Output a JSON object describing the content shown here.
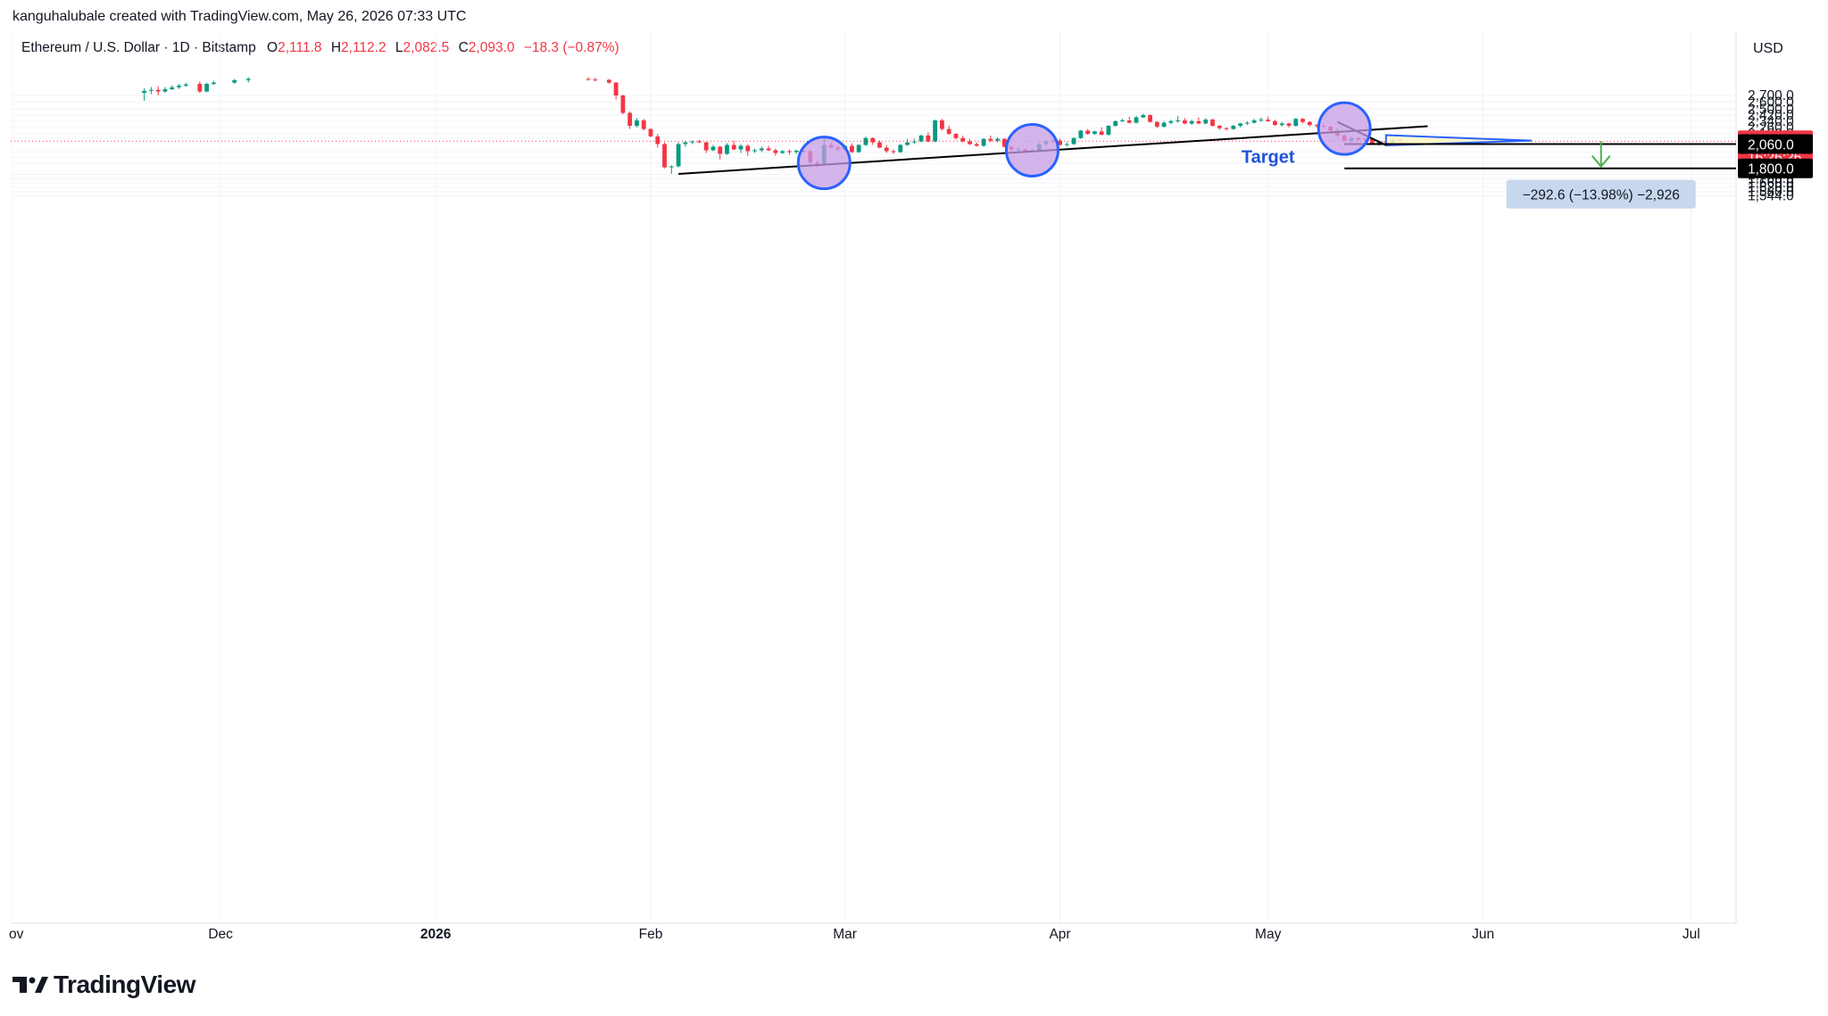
{
  "attribution": "kanguhalubale created with TradingView.com, May 26, 2026 07:33 UTC",
  "legend": {
    "symbol": "Ethereum / U.S. Dollar · 1D · Bitstamp",
    "o_label": "O",
    "o_value": "2,111.8",
    "h_label": "H",
    "h_value": "2,112.2",
    "l_label": "L",
    "l_value": "2,082.5",
    "c_label": "C",
    "c_value": "2,093.0",
    "change": "−18.3 (−0.87%)"
  },
  "currency": "USD",
  "brand": "TradingView",
  "colors": {
    "up": "#089981",
    "down": "#f23645",
    "trendline": "#000000",
    "pattern": "#2962ff",
    "pattern_fill": "#fff8c5",
    "circle_fill": "#c79be6",
    "measure": "#4caf50",
    "target_text": "#1e53d6"
  },
  "chart_data": {
    "type": "candlestick",
    "y_axis": {
      "scale": "log",
      "ticks": [
        "2,700.0",
        "2,600.0",
        "2,500.0",
        "2,420.0",
        "2,340.0",
        "2,260.0",
        "2,180.0",
        "2,130.0",
        "2,093.0",
        "2,060.0",
        "1,970.0",
        "1,910.0",
        "1,850.0",
        "1,800.0",
        "1,740.0",
        "1,700.0",
        "1,660.0",
        "1,620.0",
        "1,580.0",
        "1,544.0"
      ],
      "tick_values": [
        2700,
        2600,
        2500,
        2420,
        2340,
        2260,
        2180,
        2130,
        2093,
        2060,
        1970,
        1910,
        1850,
        1800,
        1740,
        1700,
        1660,
        1620,
        1580,
        1544
      ]
    },
    "x_axis": {
      "labels": [
        "ov",
        "Dec",
        "2026",
        "Feb",
        "Mar",
        "Apr",
        "May",
        "Jun",
        "Jul"
      ],
      "label_dates": [
        "2025-11-01",
        "2025-12-01",
        "2026-01-01",
        "2026-02-01",
        "2026-03-01",
        "2026-04-01",
        "2026-05-01",
        "2026-06-01",
        "2026-07-01"
      ]
    },
    "price_tags": [
      {
        "value": 2093.0,
        "label": "2,093.0",
        "timer": "16:26:26",
        "kind": "last"
      },
      {
        "value": 2060.0,
        "label": "2,060.0",
        "kind": "level"
      },
      {
        "value": 1800.0,
        "label": "1,800.0",
        "kind": "level"
      }
    ],
    "annotations": {
      "target_label": "Target",
      "measure_label": "−292.6 (−13.98%) −2,926",
      "ascending_trendline": {
        "from": [
          "2026-02-05",
          1745
        ],
        "to": [
          "2026-05-24",
          2275
        ]
      },
      "breakdown_line": {
        "from": [
          "2026-05-11",
          2330
        ],
        "to": [
          "2026-05-18",
          2048
        ]
      },
      "triangle": {
        "top": [
          "2026-05-18",
          2165
        ],
        "bottom": [
          "2026-05-18",
          2045
        ],
        "apex": [
          "2026-06-08",
          2100
        ]
      },
      "horizontal_levels": [
        2060,
        1800
      ],
      "circles": [
        {
          "date": "2026-02-26",
          "price": 1855
        },
        {
          "date": "2026-03-28",
          "price": 1990
        },
        {
          "date": "2026-05-12",
          "price": 2245
        }
      ],
      "measure": {
        "date": "2026-06-18",
        "from": 2093,
        "to": 1800
      }
    },
    "ohlc": [
      [
        "2025-11-20",
        2740,
        2810,
        2620,
        2770
      ],
      [
        "2025-11-21",
        2770,
        2830,
        2720,
        2785
      ],
      [
        "2025-11-22",
        2785,
        2840,
        2700,
        2760
      ],
      [
        "2025-11-23",
        2760,
        2830,
        2740,
        2795
      ],
      [
        "2025-11-24",
        2795,
        2860,
        2780,
        2825
      ],
      [
        "2025-11-25",
        2825,
        2880,
        2800,
        2850
      ],
      [
        "2025-11-26",
        2850,
        2900,
        2830,
        2870
      ],
      [
        "2025-11-28",
        2880,
        2920,
        2740,
        2760
      ],
      [
        "2025-11-29",
        2760,
        2900,
        2750,
        2880
      ],
      [
        "2025-11-30",
        2880,
        2930,
        2860,
        2900
      ],
      [
        "2025-12-03",
        2900,
        2960,
        2880,
        2940
      ],
      [
        "2025-12-05",
        2940,
        2990,
        2900,
        2960
      ],
      [
        "2026-01-23",
        2960,
        2990,
        2930,
        2950
      ],
      [
        "2026-01-24",
        2950,
        2980,
        2920,
        2945
      ],
      [
        "2026-01-26",
        2945,
        2960,
        2880,
        2900
      ],
      [
        "2026-01-27",
        2900,
        2910,
        2640,
        2700
      ],
      [
        "2026-01-28",
        2700,
        2710,
        2430,
        2450
      ],
      [
        "2026-01-29",
        2450,
        2470,
        2240,
        2280
      ],
      [
        "2026-01-30",
        2280,
        2380,
        2260,
        2350
      ],
      [
        "2026-01-31",
        2350,
        2370,
        2220,
        2240
      ],
      [
        "2026-02-01",
        2240,
        2250,
        2140,
        2150
      ],
      [
        "2026-02-02",
        2150,
        2180,
        2020,
        2060
      ],
      [
        "2026-02-03",
        2060,
        2080,
        1800,
        1810
      ],
      [
        "2026-02-04",
        1810,
        1830,
        1745,
        1820
      ],
      [
        "2026-02-05",
        1820,
        2080,
        1810,
        2060
      ],
      [
        "2026-02-06",
        2060,
        2095,
        2030,
        2080
      ],
      [
        "2026-02-07",
        2080,
        2100,
        2060,
        2090
      ],
      [
        "2026-02-08",
        2090,
        2110,
        2070,
        2080
      ],
      [
        "2026-02-09",
        2080,
        2090,
        1960,
        1990
      ],
      [
        "2026-02-10",
        1990,
        2050,
        1980,
        2030
      ],
      [
        "2026-02-11",
        2030,
        2040,
        1890,
        1950
      ],
      [
        "2026-02-12",
        1950,
        2070,
        1940,
        2050
      ],
      [
        "2026-02-13",
        2050,
        2100,
        1990,
        2000
      ],
      [
        "2026-02-14",
        2000,
        2060,
        1960,
        2040
      ],
      [
        "2026-02-15",
        2040,
        2060,
        1930,
        1980
      ],
      [
        "2026-02-16",
        1980,
        2010,
        1960,
        1990
      ],
      [
        "2026-02-17",
        1990,
        2030,
        1970,
        2010
      ],
      [
        "2026-02-18",
        2010,
        2040,
        1980,
        1990
      ],
      [
        "2026-02-19",
        1990,
        2010,
        1930,
        1960
      ],
      [
        "2026-02-20",
        1960,
        1995,
        1950,
        1980
      ],
      [
        "2026-02-21",
        1980,
        2000,
        1940,
        1970
      ],
      [
        "2026-02-22",
        1970,
        2000,
        1950,
        1985
      ],
      [
        "2026-02-23",
        1985,
        1995,
        1960,
        1980
      ],
      [
        "2026-02-24",
        1980,
        2000,
        1840,
        1860
      ],
      [
        "2026-02-25",
        1860,
        1880,
        1810,
        1850
      ],
      [
        "2026-02-26",
        1850,
        2130,
        1840,
        2050
      ],
      [
        "2026-02-27",
        2050,
        2080,
        2010,
        2020
      ],
      [
        "2026-02-28",
        2020,
        2040,
        1980,
        2000
      ],
      [
        "2026-03-01",
        2000,
        2050,
        1990,
        2040
      ],
      [
        "2026-03-02",
        2040,
        2070,
        1960,
        1970
      ],
      [
        "2026-03-03",
        1970,
        2060,
        1960,
        2050
      ],
      [
        "2026-03-04",
        2050,
        2150,
        2040,
        2130
      ],
      [
        "2026-03-05",
        2130,
        2140,
        2050,
        2080
      ],
      [
        "2026-03-06",
        2080,
        2100,
        2010,
        2020
      ],
      [
        "2026-03-07",
        2020,
        2050,
        1960,
        1980
      ],
      [
        "2026-03-08",
        1980,
        2000,
        1950,
        1970
      ],
      [
        "2026-03-09",
        1970,
        2060,
        1960,
        2050
      ],
      [
        "2026-03-10",
        2050,
        2120,
        2040,
        2080
      ],
      [
        "2026-03-11",
        2080,
        2120,
        2060,
        2090
      ],
      [
        "2026-03-12",
        2090,
        2170,
        2080,
        2160
      ],
      [
        "2026-03-13",
        2160,
        2200,
        2080,
        2090
      ],
      [
        "2026-03-14",
        2090,
        2360,
        2080,
        2350
      ],
      [
        "2026-03-15",
        2350,
        2370,
        2220,
        2240
      ],
      [
        "2026-03-16",
        2240,
        2280,
        2170,
        2180
      ],
      [
        "2026-03-17",
        2180,
        2190,
        2110,
        2130
      ],
      [
        "2026-03-18",
        2130,
        2160,
        2080,
        2090
      ],
      [
        "2026-03-19",
        2090,
        2120,
        2050,
        2060
      ],
      [
        "2026-03-20",
        2060,
        2080,
        2030,
        2040
      ],
      [
        "2026-03-21",
        2040,
        2130,
        2030,
        2120
      ],
      [
        "2026-03-22",
        2120,
        2160,
        2080,
        2100
      ],
      [
        "2026-03-23",
        2100,
        2140,
        2080,
        2120
      ],
      [
        "2026-03-24",
        2120,
        2130,
        2020,
        2030
      ],
      [
        "2026-03-25",
        2030,
        2040,
        1980,
        2000
      ],
      [
        "2026-03-26",
        2000,
        2020,
        1980,
        2000
      ],
      [
        "2026-03-27",
        2000,
        2010,
        1960,
        1980
      ],
      [
        "2026-03-28",
        1980,
        2010,
        1970,
        1990
      ],
      [
        "2026-03-29",
        1990,
        2070,
        1980,
        2060
      ],
      [
        "2026-03-30",
        2060,
        2110,
        2040,
        2090
      ],
      [
        "2026-03-31",
        2090,
        2120,
        2070,
        2100
      ],
      [
        "2026-04-01",
        2100,
        2120,
        2040,
        2050
      ],
      [
        "2026-04-02",
        2050,
        2080,
        2030,
        2060
      ],
      [
        "2026-04-03",
        2060,
        2140,
        2050,
        2130
      ],
      [
        "2026-04-04",
        2130,
        2230,
        2120,
        2220
      ],
      [
        "2026-04-05",
        2220,
        2240,
        2170,
        2180
      ],
      [
        "2026-04-06",
        2180,
        2220,
        2170,
        2210
      ],
      [
        "2026-04-07",
        2210,
        2260,
        2160,
        2170
      ],
      [
        "2026-04-08",
        2170,
        2290,
        2160,
        2280
      ],
      [
        "2026-04-09",
        2280,
        2350,
        2270,
        2340
      ],
      [
        "2026-04-10",
        2340,
        2370,
        2330,
        2350
      ],
      [
        "2026-04-11",
        2350,
        2400,
        2310,
        2320
      ],
      [
        "2026-04-12",
        2320,
        2410,
        2310,
        2390
      ],
      [
        "2026-04-13",
        2390,
        2440,
        2380,
        2420
      ],
      [
        "2026-04-14",
        2420,
        2430,
        2320,
        2330
      ],
      [
        "2026-04-15",
        2330,
        2340,
        2250,
        2270
      ],
      [
        "2026-04-16",
        2270,
        2340,
        2260,
        2320
      ],
      [
        "2026-04-17",
        2320,
        2360,
        2300,
        2340
      ],
      [
        "2026-04-18",
        2340,
        2410,
        2320,
        2350
      ],
      [
        "2026-04-19",
        2350,
        2380,
        2300,
        2310
      ],
      [
        "2026-04-20",
        2310,
        2360,
        2290,
        2340
      ],
      [
        "2026-04-21",
        2340,
        2390,
        2300,
        2310
      ],
      [
        "2026-04-22",
        2310,
        2380,
        2300,
        2360
      ],
      [
        "2026-04-23",
        2360,
        2370,
        2270,
        2280
      ],
      [
        "2026-04-24",
        2280,
        2290,
        2230,
        2250
      ],
      [
        "2026-04-25",
        2250,
        2260,
        2220,
        2240
      ],
      [
        "2026-04-26",
        2240,
        2290,
        2230,
        2280
      ],
      [
        "2026-04-27",
        2280,
        2320,
        2260,
        2310
      ],
      [
        "2026-04-28",
        2310,
        2340,
        2290,
        2320
      ],
      [
        "2026-04-29",
        2320,
        2370,
        2310,
        2350
      ],
      [
        "2026-04-30",
        2350,
        2390,
        2330,
        2360
      ],
      [
        "2026-05-01",
        2360,
        2400,
        2330,
        2340
      ],
      [
        "2026-05-02",
        2340,
        2360,
        2280,
        2290
      ],
      [
        "2026-05-03",
        2290,
        2330,
        2270,
        2310
      ],
      [
        "2026-05-04",
        2310,
        2320,
        2260,
        2280
      ],
      [
        "2026-05-05",
        2280,
        2380,
        2270,
        2370
      ],
      [
        "2026-05-06",
        2370,
        2380,
        2310,
        2330
      ],
      [
        "2026-05-07",
        2330,
        2340,
        2270,
        2290
      ],
      [
        "2026-05-08",
        2290,
        2300,
        2260,
        2280
      ],
      [
        "2026-05-09",
        2280,
        2310,
        2250,
        2270
      ],
      [
        "2026-05-10",
        2270,
        2280,
        2200,
        2220
      ],
      [
        "2026-05-11",
        2220,
        2250,
        2140,
        2160
      ],
      [
        "2026-05-12",
        2160,
        2170,
        2090,
        2100
      ],
      [
        "2026-05-13",
        2100,
        2150,
        2080,
        2130
      ],
      [
        "2026-05-14",
        2130,
        2140,
        2090,
        2110
      ],
      [
        "2026-05-15",
        2110,
        2130,
        2080,
        2120
      ],
      [
        "2026-05-16",
        2120,
        2130,
        2060,
        2070
      ],
      [
        "2026-05-17",
        2070,
        2100,
        2040,
        2090
      ],
      [
        "2026-05-18",
        2090,
        2110,
        2060,
        2080
      ],
      [
        "2026-05-19",
        2080,
        2120,
        2070,
        2112
      ],
      [
        "2026-05-20",
        2112,
        2112,
        2082,
        2093
      ]
    ]
  }
}
